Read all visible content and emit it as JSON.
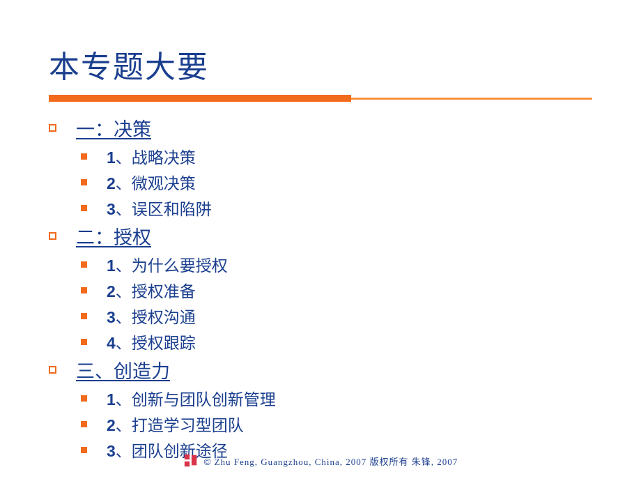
{
  "colors": {
    "title": "#1b3f8f",
    "accent_orange": "#f26a1b",
    "accent_orange_light": "#f7923e",
    "section_text": "#1b3f8f",
    "section_bullet": "#f26a1b",
    "sub_bullet": "#f26a1b",
    "sub_text": "#1b3f8f",
    "footer_text": "#1b3f8f",
    "logo": "#d9344a"
  },
  "layout": {
    "underline_thick_width": 440,
    "underline_thin_width": 350
  },
  "title": "本专题大要",
  "sections": [
    {
      "heading": "一：决策",
      "items": [
        {
          "num": "1",
          "text": "、战略决策"
        },
        {
          "num": "2",
          "text": "、微观决策"
        },
        {
          "num": "3",
          "text": "、误区和陷阱"
        }
      ]
    },
    {
      "heading": "二：授权",
      "items": [
        {
          "num": "1",
          "text": "、为什么要授权"
        },
        {
          "num": "2",
          "text": "、授权准备"
        },
        {
          "num": "3",
          "text": "、授权沟通"
        },
        {
          "num": "4",
          "text": "、授权跟踪"
        }
      ]
    },
    {
      "heading": "三、创造力",
      "items": [
        {
          "num": "1",
          "text": "、创新与团队创新管理"
        },
        {
          "num": "2",
          "text": "、打造学习型团队"
        },
        {
          "num": "3",
          "text": "、团队创新途径"
        }
      ]
    }
  ],
  "footer": {
    "copyright_symbol": "©",
    "text": "Zhu Feng,  Guangzhou,  China,   2007   版权所有   朱锋,   2007"
  }
}
